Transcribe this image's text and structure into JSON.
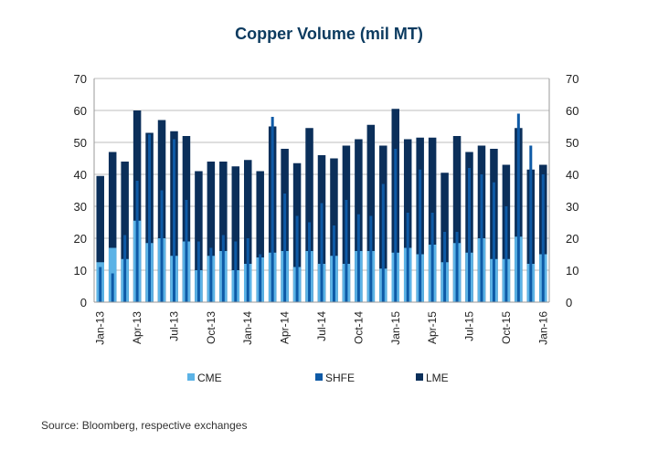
{
  "chart_data": {
    "type": "bar",
    "title": "Copper Volume (mil MT)",
    "source": "Source: Bloomberg, respective exchanges",
    "ylim": [
      0,
      70
    ],
    "yticks": [
      0,
      10,
      20,
      30,
      40,
      50,
      60,
      70
    ],
    "categories": [
      "Jan-13",
      "Feb-13",
      "Mar-13",
      "Apr-13",
      "May-13",
      "Jun-13",
      "Jul-13",
      "Aug-13",
      "Sep-13",
      "Oct-13",
      "Nov-13",
      "Dec-13",
      "Jan-14",
      "Feb-14",
      "Mar-14",
      "Apr-14",
      "May-14",
      "Jun-14",
      "Jul-14",
      "Aug-14",
      "Sep-14",
      "Oct-14",
      "Nov-14",
      "Dec-14",
      "Jan-15",
      "Feb-15",
      "Mar-15",
      "Apr-15",
      "May-15",
      "Jun-15",
      "Jul-15",
      "Aug-15",
      "Sep-15",
      "Oct-15",
      "Nov-15",
      "Dec-15",
      "Jan-16"
    ],
    "xtick_labels": [
      "Jan-13",
      "Apr-13",
      "Jul-13",
      "Oct-13",
      "Jan-14",
      "Apr-14",
      "Jul-14",
      "Oct-14",
      "Jan-15",
      "Apr-15",
      "Jul-15",
      "Oct-15",
      "Jan-16"
    ],
    "series": [
      {
        "name": "LME",
        "color": "#0b2f5a",
        "values": [
          39.5,
          47,
          44,
          60,
          53,
          57,
          53.5,
          52,
          41,
          44,
          44,
          42.5,
          44.5,
          41,
          55,
          48,
          43.5,
          54.5,
          46,
          45,
          49,
          51,
          55.5,
          49,
          60.5,
          51,
          51.5,
          51.5,
          40.5,
          52,
          47,
          49,
          48,
          43,
          54.5,
          41.5,
          43
        ]
      },
      {
        "name": "CME",
        "color": "#5cb3e6",
        "values": [
          12.5,
          17,
          13.5,
          25.5,
          18.5,
          20,
          14.5,
          19,
          10,
          14.5,
          16,
          10,
          12,
          14,
          15.5,
          16,
          11,
          16,
          12,
          14.5,
          12,
          16,
          16,
          10.5,
          15.5,
          17,
          15,
          18,
          12.5,
          18.5,
          15.5,
          20,
          13.5,
          13.5,
          20.5,
          12,
          15
        ]
      },
      {
        "name": "SHFE",
        "color": "#0e5aa6",
        "values": [
          11,
          9,
          21,
          38,
          52.5,
          35,
          51,
          32,
          19,
          17,
          21,
          19,
          20,
          15,
          58,
          34,
          27,
          25,
          31,
          24,
          32,
          27.5,
          27,
          37,
          48,
          28,
          41.5,
          28,
          22,
          22,
          42,
          40,
          37.5,
          30,
          59,
          49,
          40
        ]
      }
    ],
    "legend": [
      "CME",
      "SHFE",
      "LME"
    ]
  }
}
